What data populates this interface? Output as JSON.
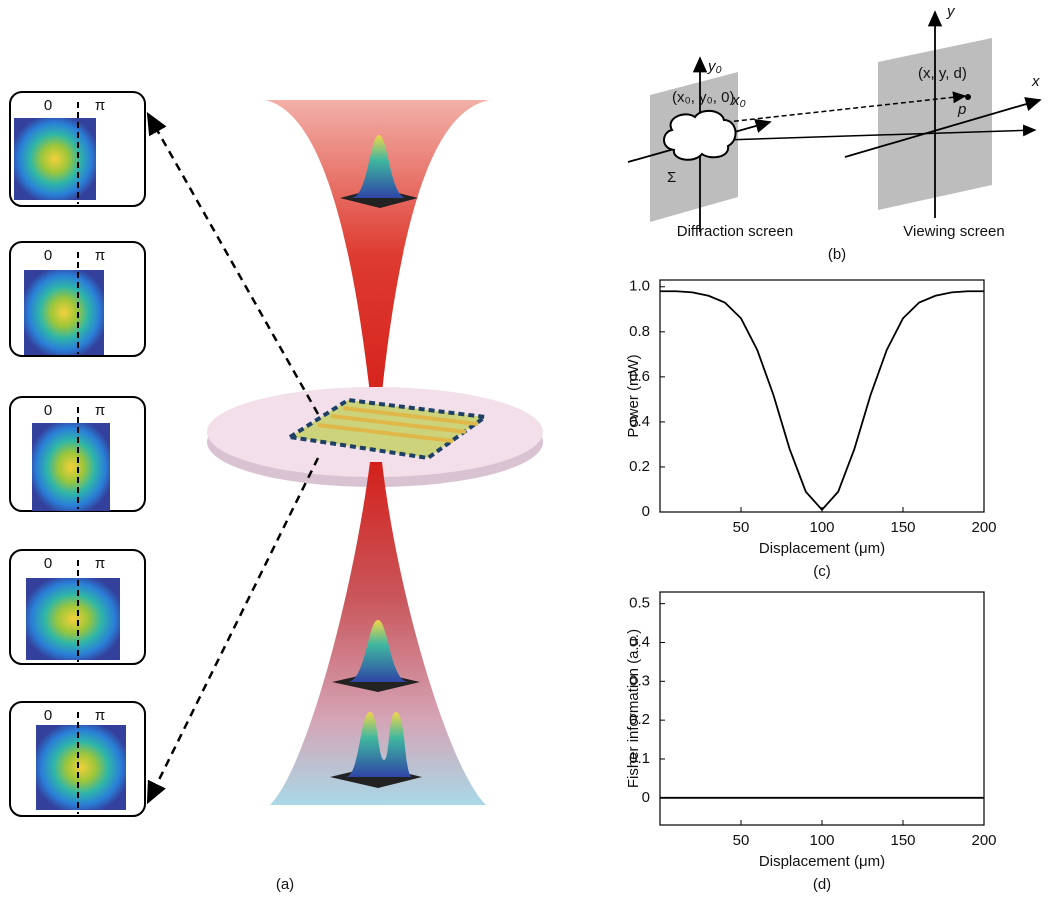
{
  "panel_a": {
    "insets": [
      {
        "phase_left": "0",
        "phase_right": "π"
      },
      {
        "phase_left": "0",
        "phase_right": "π"
      },
      {
        "phase_left": "0",
        "phase_right": "π"
      },
      {
        "phase_left": "0",
        "phase_right": "π"
      },
      {
        "phase_left": "0",
        "phase_right": "π"
      }
    ],
    "caption": "(a)"
  },
  "panel_b": {
    "y0_axis": "y₀",
    "x0_axis": "x₀",
    "source_point": "(x₀, y₀, 0)",
    "sigma": "Σ",
    "y_axis": "y",
    "x_axis": "x",
    "target_point": "(x, y, d)",
    "p": "p",
    "diffraction_screen": "Diffraction screen",
    "viewing_screen": "Viewing screen",
    "caption": "(b)"
  },
  "chart_data": [
    {
      "type": "line",
      "xlabel": "Displacement (μm)",
      "ylabel": "Power (mW)",
      "caption": "(c)",
      "x": [
        0,
        10,
        20,
        30,
        40,
        50,
        60,
        70,
        80,
        90,
        100,
        110,
        120,
        130,
        140,
        150,
        160,
        170,
        180,
        190,
        200
      ],
      "series": [
        {
          "color": "#000000",
          "values": [
            0.98,
            0.98,
            0.975,
            0.96,
            0.93,
            0.86,
            0.72,
            0.52,
            0.28,
            0.09,
            0.01,
            0.09,
            0.28,
            0.52,
            0.72,
            0.86,
            0.93,
            0.96,
            0.975,
            0.98,
            0.98
          ]
        }
      ],
      "xlim": [
        0,
        200
      ],
      "ylim": [
        0,
        1.03
      ],
      "xticks": [
        50,
        100,
        150,
        200
      ],
      "yticks": [
        0,
        0.2,
        0.4,
        0.6,
        0.8,
        {
          "value": 1,
          "label": "1.0"
        }
      ]
    },
    {
      "type": "line",
      "xlabel": "Displacement (μm)",
      "ylabel": "Fisher information (a.u.)",
      "caption": "(d)",
      "x": [
        0,
        200
      ],
      "series": [
        {
          "color": "#000000",
          "values": [
            0,
            0
          ]
        }
      ],
      "xlim": [
        0,
        200
      ],
      "ylim": [
        -0.07,
        0.53
      ],
      "xticks": [
        50,
        100,
        150,
        200
      ],
      "yticks": [
        0,
        0.1,
        0.2,
        0.3,
        0.4,
        0.5
      ]
    }
  ]
}
